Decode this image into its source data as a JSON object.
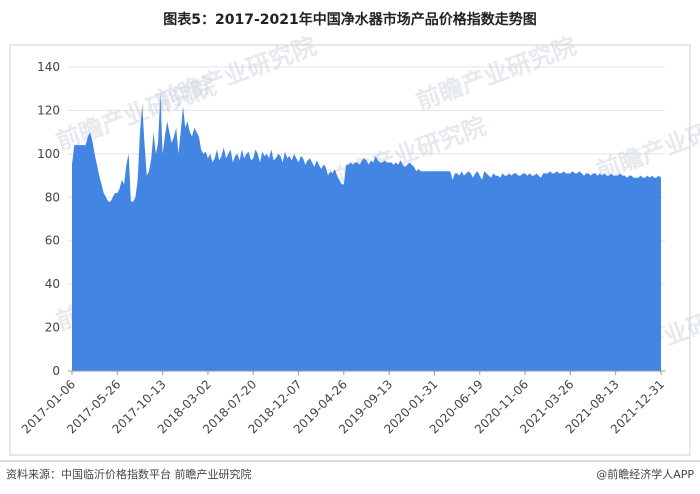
{
  "chart_data": {
    "type": "area",
    "title": "图表5：2017-2021年中国净水器市场产品价格指数走势图",
    "source": "资料来源：中国临沂价格指数平台 前瞻产业研究院",
    "credit": "@前瞻经济学人APP",
    "watermark": "前瞻产业研究院",
    "color": "#4285e3",
    "ylim": [
      0,
      140
    ],
    "yticks": [
      0,
      20,
      40,
      60,
      80,
      100,
      120,
      140
    ],
    "grid": true,
    "categories": [
      "2017-01-06",
      null,
      null,
      null,
      null,
      null,
      null,
      null,
      null,
      null,
      null,
      null,
      null,
      null,
      null,
      null,
      null,
      null,
      null,
      null,
      "2017-05-26",
      null,
      null,
      null,
      null,
      null,
      null,
      null,
      null,
      null,
      null,
      null,
      null,
      null,
      null,
      null,
      null,
      null,
      null,
      null,
      "2017-10-13",
      null,
      null,
      null,
      null,
      null,
      null,
      null,
      null,
      null,
      null,
      null,
      null,
      null,
      null,
      null,
      null,
      null,
      null,
      null,
      "2018-03-02",
      null,
      null,
      null,
      null,
      null,
      null,
      null,
      null,
      null,
      null,
      null,
      null,
      null,
      null,
      null,
      null,
      null,
      null,
      null,
      "2018-07-20",
      null,
      null,
      null,
      null,
      null,
      null,
      null,
      null,
      null,
      null,
      null,
      null,
      null,
      null,
      null,
      null,
      null,
      null,
      null,
      "2018-12-07",
      null,
      null,
      null,
      null,
      null,
      null,
      null,
      null,
      null,
      null,
      null,
      null,
      null,
      null,
      null,
      null,
      null,
      null,
      null,
      "2019-04-26",
      null,
      null,
      null,
      null,
      null,
      null,
      null,
      null,
      null,
      null,
      null,
      null,
      null,
      null,
      null,
      null,
      null,
      null,
      null,
      "2019-09-13",
      null,
      null,
      null,
      null,
      null,
      null,
      null,
      null,
      null,
      null,
      null,
      null,
      null,
      null,
      null,
      null,
      null,
      null,
      null,
      "2020-01-31",
      null,
      null,
      null,
      null,
      null,
      null,
      null,
      null,
      null,
      null,
      null,
      null,
      null,
      null,
      null,
      null,
      null,
      null,
      null,
      "2020-06-19",
      null,
      null,
      null,
      null,
      null,
      null,
      null,
      null,
      null,
      null,
      null,
      null,
      null,
      null,
      null,
      null,
      null,
      null,
      null,
      "2020-11-06",
      null,
      null,
      null,
      null,
      null,
      null,
      null,
      null,
      null,
      null,
      null,
      null,
      null,
      null,
      null,
      null,
      null,
      null,
      null,
      "2021-03-26",
      null,
      null,
      null,
      null,
      null,
      null,
      null,
      null,
      null,
      null,
      null,
      null,
      null,
      null,
      null,
      null,
      null,
      null,
      null,
      "2021-08-13",
      null,
      null,
      null,
      null,
      null,
      null,
      null,
      null,
      null,
      null,
      null,
      null,
      null,
      null,
      null,
      null,
      null,
      null,
      null,
      "2021-12-31"
    ],
    "values": [
      95,
      104,
      104,
      104,
      104,
      104,
      104,
      108,
      110,
      106,
      100,
      95,
      90,
      86,
      82,
      80,
      78,
      78,
      80,
      82,
      82,
      84,
      88,
      86,
      95,
      100,
      78,
      78,
      80,
      88,
      110,
      122,
      105,
      90,
      92,
      98,
      110,
      100,
      105,
      128,
      100,
      108,
      115,
      110,
      105,
      108,
      112,
      100,
      110,
      122,
      112,
      115,
      110,
      108,
      112,
      110,
      108,
      102,
      100,
      101,
      98,
      100,
      96,
      98,
      102,
      97,
      99,
      103,
      98,
      100,
      102,
      96,
      99,
      100,
      97,
      102,
      98,
      100,
      101,
      97,
      98,
      102,
      100,
      96,
      101,
      99,
      100,
      98,
      102,
      97,
      98,
      100,
      99,
      96,
      101,
      98,
      99,
      97,
      100,
      98,
      96,
      99,
      98,
      95,
      97,
      98,
      96,
      94,
      97,
      95,
      93,
      95,
      94,
      90,
      92,
      91,
      93,
      90,
      88,
      86,
      86,
      95,
      95,
      96,
      95,
      96,
      96,
      95,
      97,
      98,
      97,
      95,
      97,
      96,
      99,
      97,
      96,
      96,
      97,
      96,
      96,
      96,
      95,
      96,
      95,
      97,
      95,
      94,
      95,
      96,
      95,
      94,
      92,
      93,
      92,
      92,
      92,
      92,
      92,
      92,
      92,
      92,
      92,
      92,
      92,
      92,
      92,
      92,
      88,
      91,
      91,
      90,
      92,
      90,
      91,
      92,
      91,
      89,
      91,
      92,
      90,
      88,
      92,
      91,
      90,
      89,
      91,
      90,
      90,
      89,
      91,
      90,
      90,
      91,
      90,
      91,
      91,
      90,
      90,
      91,
      91,
      90,
      91,
      90,
      90,
      91,
      90,
      89,
      91,
      91,
      91,
      92,
      91,
      91,
      92,
      91,
      91,
      92,
      91,
      91,
      91,
      92,
      91,
      91,
      92,
      91,
      90,
      91,
      91,
      90,
      91,
      91,
      90,
      91,
      90,
      91,
      90,
      90,
      91,
      90,
      90,
      90,
      91,
      90,
      90,
      89,
      90,
      90,
      89,
      89,
      89,
      90,
      89,
      89,
      90,
      89,
      90,
      89,
      89,
      90,
      89
    ]
  }
}
